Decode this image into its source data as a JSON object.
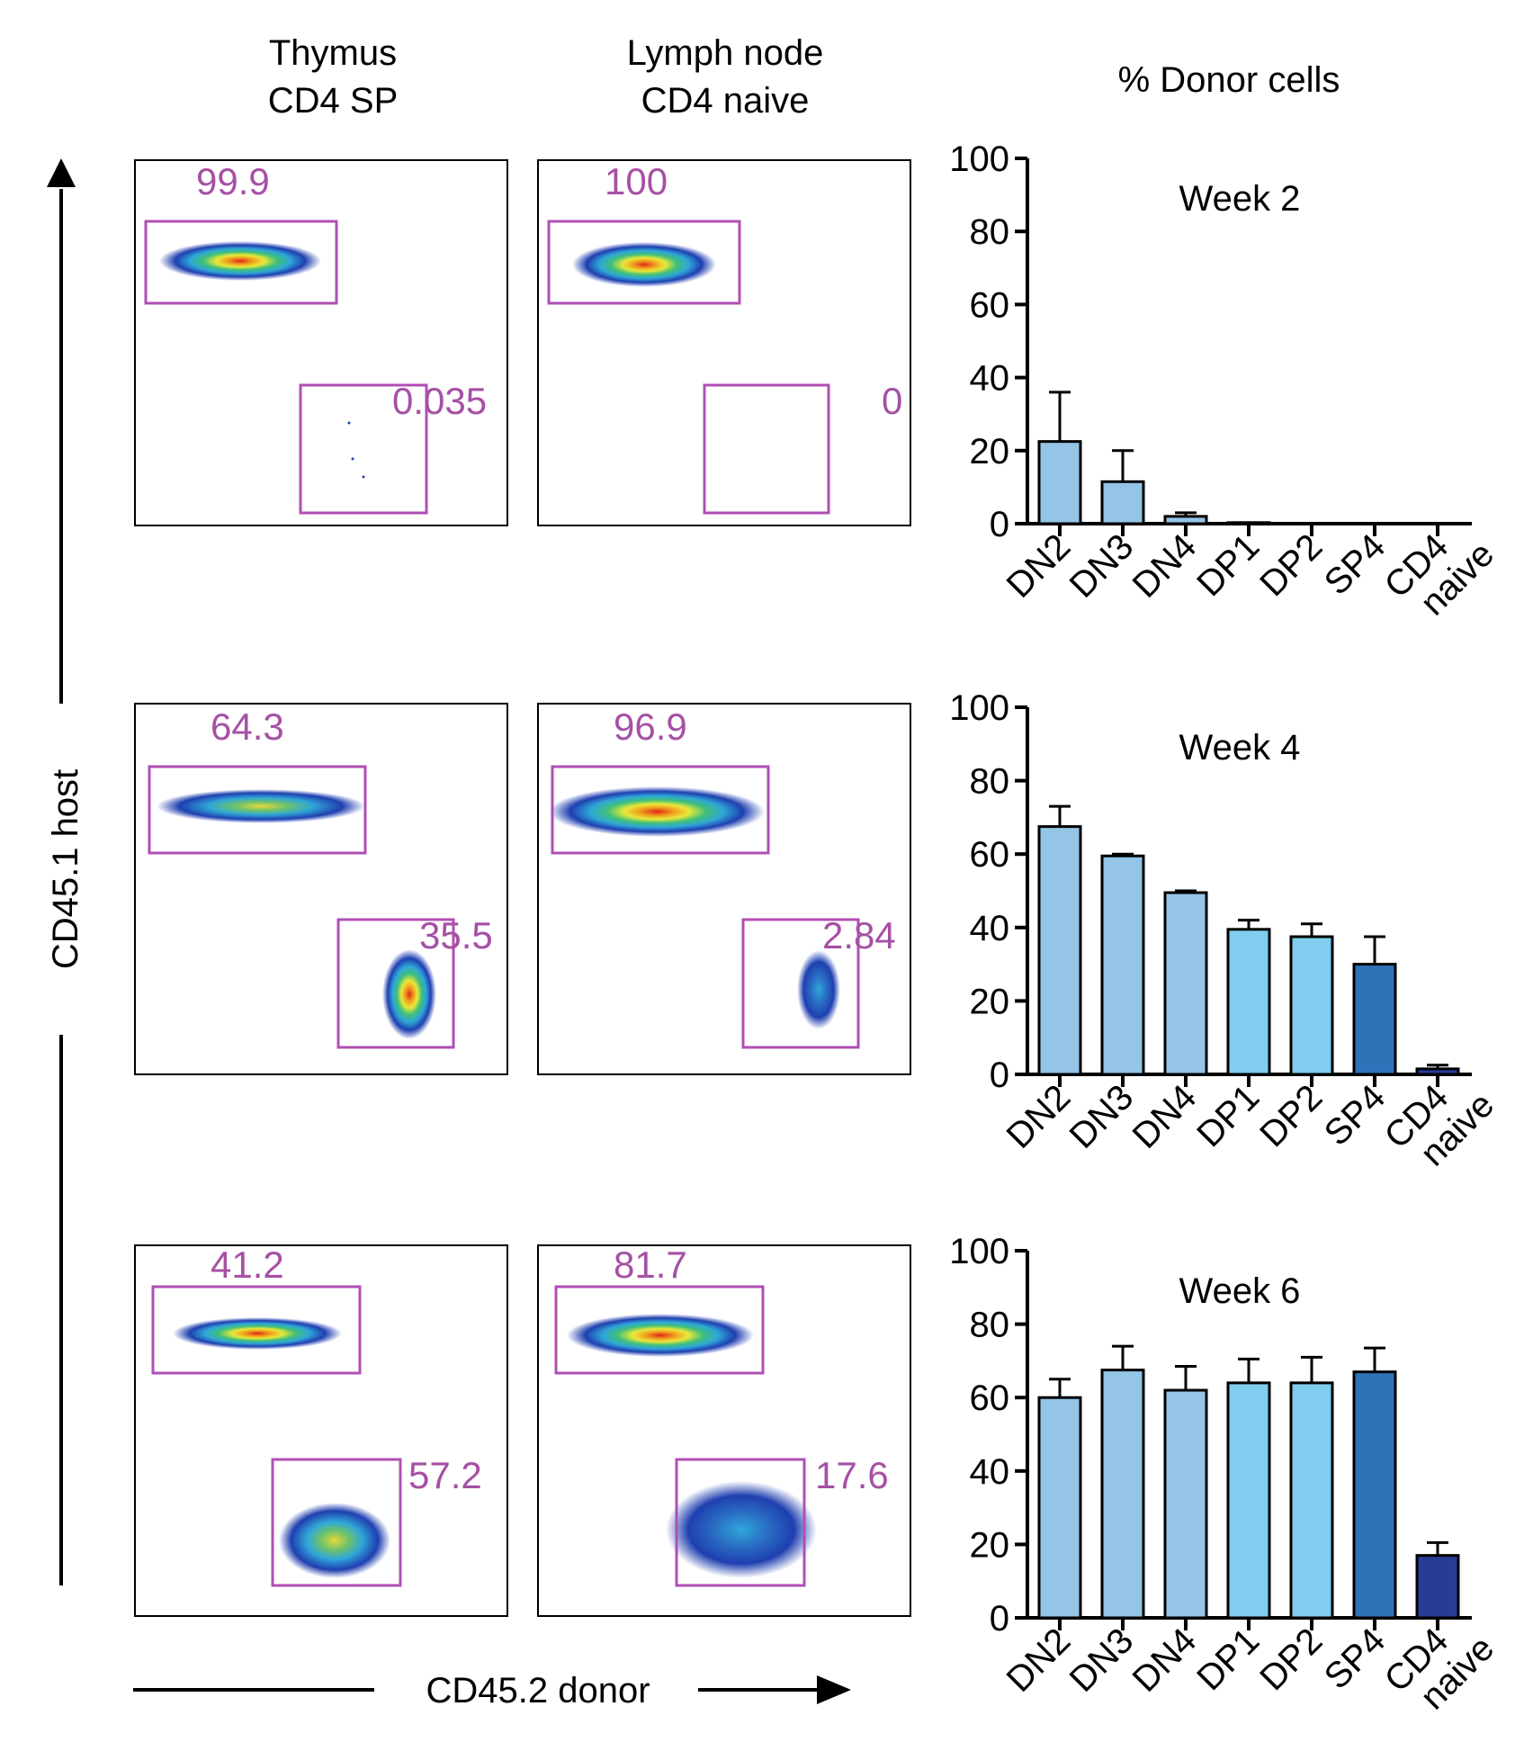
{
  "header": {
    "col1_line1": "Thymus",
    "col1_line2": "CD4 SP",
    "col2_line1": "Lymph node",
    "col2_line2": "CD4 naive",
    "col3": "% Donor cells"
  },
  "axes": {
    "y_label": "CD45.1 host",
    "x_label": "CD45.2 donor"
  },
  "colors": {
    "gate": "#b04fb4",
    "gate_text": "#a650a4",
    "bar_dn": "#94c4e6",
    "bar_dp": "#80cdef",
    "bar_sp4": "#2e72b8",
    "bar_cd4": "#283c96"
  },
  "flow_panels": [
    {
      "tissue": "Thymus CD4 SP",
      "week": "2",
      "host_pct": "99.9",
      "donor_pct": "0.035"
    },
    {
      "tissue": "Lymph node CD4 naive",
      "week": "2",
      "host_pct": "100",
      "donor_pct": "0"
    },
    {
      "tissue": "Thymus CD4 SP",
      "week": "4",
      "host_pct": "64.3",
      "donor_pct": "35.5"
    },
    {
      "tissue": "Lymph node CD4 naive",
      "week": "4",
      "host_pct": "96.9",
      "donor_pct": "2.84"
    },
    {
      "tissue": "Thymus CD4 SP",
      "week": "6",
      "host_pct": "41.2",
      "donor_pct": "57.2"
    },
    {
      "tissue": "Lymph node CD4 naive",
      "week": "6",
      "host_pct": "81.7",
      "donor_pct": "17.6"
    }
  ],
  "chart_data": [
    {
      "type": "bar",
      "title": "Week 2",
      "categories": [
        "DN2",
        "DN3",
        "DN4",
        "DP1",
        "DP2",
        "SP4",
        "CD4 naive"
      ],
      "values": [
        22.5,
        11.5,
        2,
        0.3,
        0,
        0,
        0
      ],
      "error": [
        13.5,
        8.5,
        1,
        0,
        0,
        0,
        0
      ],
      "ylim": [
        0,
        100
      ],
      "yticks": [
        "0",
        "20",
        "40",
        "60",
        "80",
        "100"
      ]
    },
    {
      "type": "bar",
      "title": "Week 4",
      "categories": [
        "DN2",
        "DN3",
        "DN4",
        "DP1",
        "DP2",
        "SP4",
        "CD4 naive"
      ],
      "values": [
        67.5,
        59.5,
        49.5,
        39.5,
        37.5,
        30,
        1.5
      ],
      "error": [
        5.5,
        0.5,
        0.5,
        2.5,
        3.5,
        7.5,
        1
      ],
      "ylim": [
        0,
        100
      ],
      "yticks": [
        "0",
        "20",
        "40",
        "60",
        "80",
        "100"
      ]
    },
    {
      "type": "bar",
      "title": "Week 6",
      "categories": [
        "DN2",
        "DN3",
        "DN4",
        "DP1",
        "DP2",
        "SP4",
        "CD4 naive"
      ],
      "values": [
        60,
        67.5,
        62,
        64,
        64,
        67,
        17
      ],
      "error": [
        5,
        6.5,
        6.5,
        6.5,
        7,
        6.5,
        3.5
      ],
      "ylim": [
        0,
        100
      ],
      "yticks": [
        "0",
        "20",
        "40",
        "60",
        "80",
        "100"
      ]
    }
  ]
}
